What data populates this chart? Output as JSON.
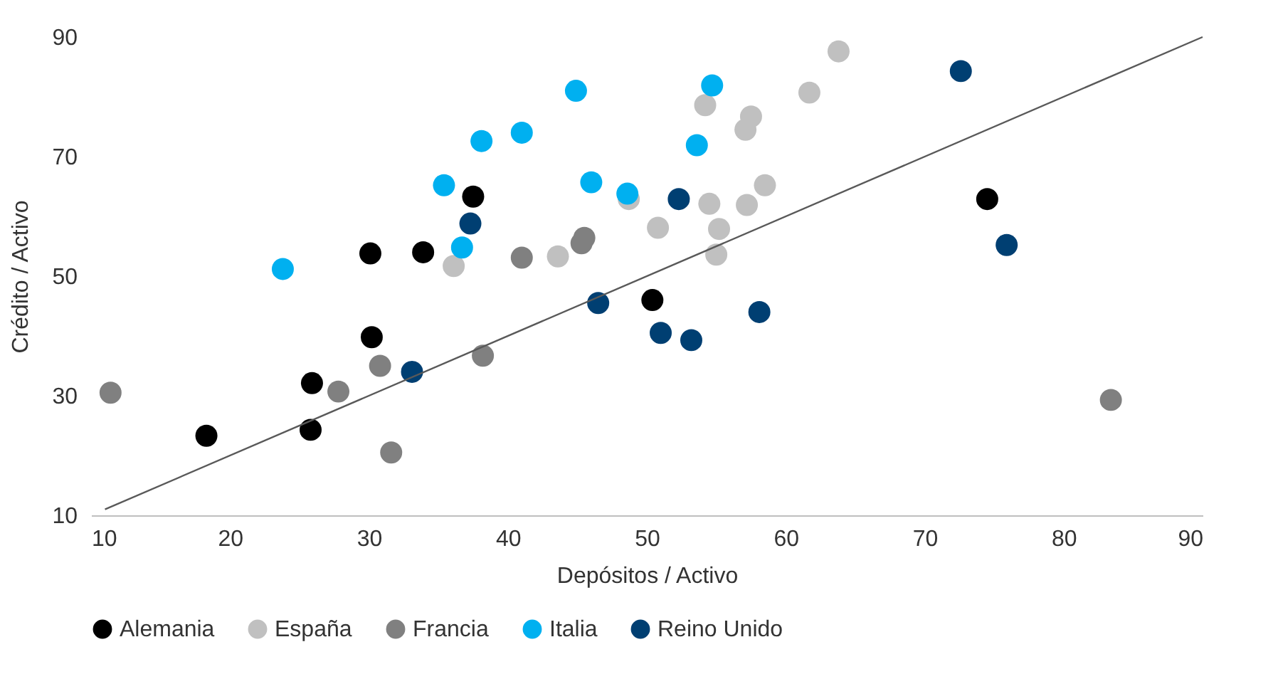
{
  "chart_data": {
    "type": "scatter",
    "xlabel": "Depósitos / Activo",
    "ylabel": "Crédito / Activo",
    "xlim": [
      10,
      90
    ],
    "ylim": [
      10,
      90
    ],
    "xticks": [
      10,
      20,
      30,
      40,
      50,
      60,
      70,
      80,
      90
    ],
    "yticks": [
      10,
      30,
      50,
      70,
      90
    ],
    "legend": "bottom",
    "marker": "circle",
    "series": [
      {
        "name": "Alemania",
        "color": "#000000",
        "x": [
          18.3,
          25.9,
          25.8,
          30.1,
          30.2,
          33.9,
          37.5,
          50.4,
          74.5
        ],
        "values": [
          23.3,
          32.1,
          24.3,
          53.8,
          39.8,
          54.0,
          63.3,
          46.0,
          62.9
        ]
      },
      {
        "name": "España",
        "color": "#c0c0c0",
        "x": [
          63.8,
          61.7,
          54.2,
          57.5,
          57.1,
          58.5,
          57.2,
          54.5,
          48.7,
          50.8,
          55.2,
          55.0,
          43.6,
          36.1
        ],
        "values": [
          87.6,
          80.7,
          78.6,
          76.7,
          74.5,
          65.2,
          61.9,
          62.1,
          62.9,
          58.1,
          57.9,
          53.6,
          53.3,
          51.7
        ]
      },
      {
        "name": "Francia",
        "color": "#808080",
        "x": [
          11.4,
          27.8,
          30.8,
          31.6,
          38.2,
          41.0,
          45.3,
          45.5,
          83.4
        ],
        "values": [
          30.5,
          30.7,
          35.0,
          20.5,
          36.7,
          53.1,
          55.5,
          56.4,
          29.3
        ]
      },
      {
        "name": "Italia",
        "color": "#00b0f0",
        "x": [
          23.8,
          35.4,
          36.7,
          38.1,
          41.0,
          44.9,
          46.0,
          48.6,
          53.6,
          54.7
        ],
        "values": [
          51.2,
          65.2,
          54.8,
          72.6,
          74.0,
          81.0,
          65.7,
          63.8,
          71.9,
          81.9
        ]
      },
      {
        "name": "Reino Unido",
        "color": "#003f72",
        "x": [
          72.6,
          33.1,
          37.3,
          46.5,
          51.0,
          52.3,
          53.2,
          58.1,
          75.9
        ],
        "values": [
          84.3,
          34.0,
          58.8,
          45.5,
          40.5,
          62.9,
          39.3,
          44.0,
          55.2
        ]
      },
      {
        "type": "line",
        "marker": "none",
        "color": "#595959",
        "x": [
          11,
          90
        ],
        "values": [
          11,
          90
        ]
      }
    ]
  }
}
